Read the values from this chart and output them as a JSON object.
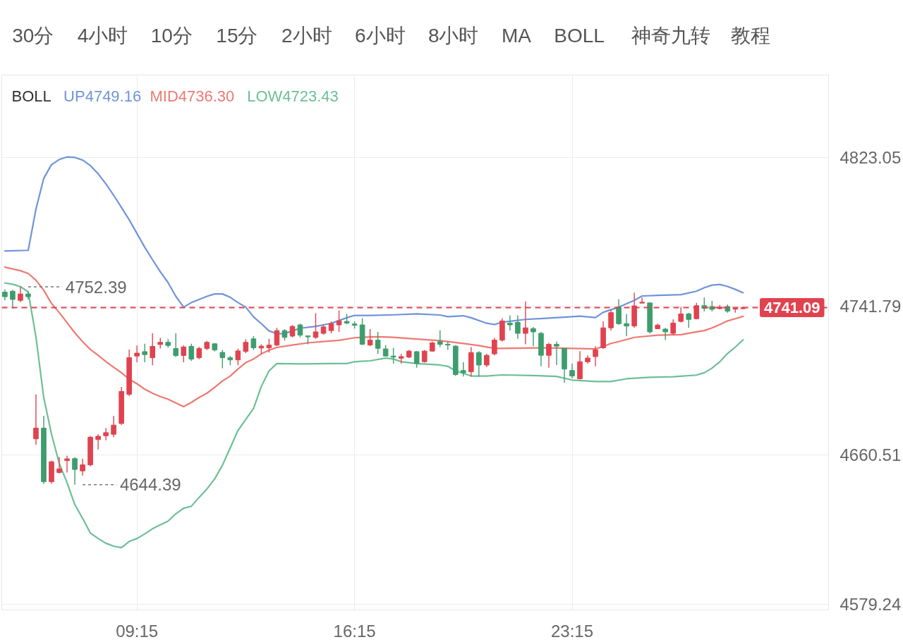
{
  "chart_data": {
    "type": "candlestick",
    "x": [
      5.0,
      5.25,
      5.5,
      5.75,
      6.0,
      6.25,
      6.5,
      6.75,
      7.0,
      7.25,
      7.5,
      7.75,
      8.0,
      8.25,
      8.5,
      8.75,
      9.0,
      9.25,
      9.5,
      9.75,
      10.0,
      10.25,
      10.5,
      10.75,
      11.0,
      11.25,
      11.5,
      11.75,
      12.0,
      12.25,
      12.5,
      12.75,
      13.0,
      13.25,
      13.5,
      13.75,
      14.0,
      14.25,
      14.5,
      14.75,
      15.0,
      15.25,
      15.5,
      15.75,
      16.0,
      16.25,
      16.5,
      16.75,
      17.0,
      17.25,
      17.5,
      17.75,
      18.0,
      18.25,
      18.5,
      18.75,
      19.0,
      19.25,
      19.5,
      19.75,
      20.0,
      20.25,
      20.5,
      20.75,
      21.0,
      21.25,
      21.5,
      21.75,
      22.0,
      22.25,
      22.5,
      22.75,
      23.0,
      23.25,
      23.5,
      23.75,
      24.0,
      24.25,
      24.5,
      24.75,
      25.0,
      25.25,
      25.5,
      25.75,
      26.0,
      26.25,
      26.5,
      26.75,
      27.0,
      27.25,
      27.5,
      27.75,
      28.0,
      28.25,
      28.5,
      28.75
    ],
    "ohlc": [
      [
        4749.5,
        4751.0,
        4745.0,
        4747.0
      ],
      [
        4750.0,
        4750.8,
        4740.6,
        4745.5
      ],
      [
        4745.0,
        4752.39,
        4744.0,
        4748.5
      ],
      [
        4748.5,
        4749.8,
        4745.5,
        4747.0
      ],
      [
        4669.4,
        4693.7,
        4666.1,
        4675.3
      ],
      [
        4675.3,
        4682.0,
        4644.8,
        4646.0
      ],
      [
        4646.0,
        4657.5,
        4645.0,
        4656.9
      ],
      [
        4651.0,
        4659.5,
        4650.5,
        4653.0
      ],
      [
        4657.5,
        4660.2,
        4651.0,
        4658.5
      ],
      [
        4658.6,
        4659.4,
        4644.39,
        4652.7
      ],
      [
        4651.9,
        4658.6,
        4649.4,
        4655.2
      ],
      [
        4655.2,
        4671.0,
        4654.4,
        4670.3
      ],
      [
        4669.0,
        4671.9,
        4663.6,
        4670.8
      ],
      [
        4671.1,
        4675.3,
        4668.6,
        4672.8
      ],
      [
        4671.9,
        4681.9,
        4670.3,
        4676.9
      ],
      [
        4677.8,
        4697.8,
        4677.0,
        4695.3
      ],
      [
        4693.7,
        4718.2,
        4692.8,
        4713.7
      ],
      [
        4714.6,
        4720.4,
        4711.2,
        4716.2
      ],
      [
        4717.0,
        4721.3,
        4711.2,
        4715.4
      ],
      [
        4713.7,
        4727.1,
        4709.6,
        4719.9
      ],
      [
        4720.9,
        4724.6,
        4718.7,
        4722.1
      ],
      [
        4722.1,
        4723.8,
        4719.2,
        4720.4
      ],
      [
        4718.7,
        4727.1,
        4714.0,
        4714.9
      ],
      [
        4714.9,
        4720.4,
        4711.2,
        4719.6
      ],
      [
        4719.9,
        4721.3,
        4712.0,
        4712.9
      ],
      [
        4713.7,
        4719.6,
        4712.9,
        4718.7
      ],
      [
        4718.7,
        4722.9,
        4717.9,
        4722.1
      ],
      [
        4721.3,
        4721.6,
        4717.1,
        4717.9
      ],
      [
        4716.6,
        4717.9,
        4707.9,
        4713.7
      ],
      [
        4713.7,
        4714.6,
        4709.6,
        4712.5
      ],
      [
        4712.5,
        4718.7,
        4709.6,
        4717.4
      ],
      [
        4717.1,
        4723.8,
        4716.2,
        4722.1
      ],
      [
        4724.0,
        4725.5,
        4718.0,
        4719.1
      ],
      [
        4719.0,
        4721.0,
        4715.8,
        4720.0
      ],
      [
        4719.1,
        4724.0,
        4716.5,
        4720.6
      ],
      [
        4720.6,
        4730.0,
        4720.0,
        4728.5
      ],
      [
        4728.5,
        4729.3,
        4723.0,
        4724.8
      ],
      [
        4725.5,
        4731.5,
        4724.8,
        4730.8
      ],
      [
        4731.6,
        4732.3,
        4724.8,
        4726.0
      ],
      [
        4725.6,
        4725.6,
        4721.0,
        4725.1
      ],
      [
        4724.8,
        4738.0,
        4724.0,
        4727.8
      ],
      [
        4727.0,
        4731.6,
        4726.3,
        4730.5
      ],
      [
        4728.5,
        4733.5,
        4727.0,
        4732.3
      ],
      [
        4731.6,
        4739.5,
        4727.8,
        4733.8
      ],
      [
        4733.5,
        4737.6,
        4732.0,
        4732.6
      ],
      [
        4732.1,
        4733.5,
        4729.6,
        4731.4
      ],
      [
        4731.6,
        4735.3,
        4720.6,
        4721.0
      ],
      [
        4720.6,
        4729.3,
        4720.0,
        4723.3
      ],
      [
        4723.3,
        4727.8,
        4715.8,
        4718.8
      ],
      [
        4718.5,
        4720.6,
        4714.3,
        4714.6
      ],
      [
        4714.6,
        4719.1,
        4710.5,
        4714.0
      ],
      [
        4713.4,
        4715.8,
        4710.5,
        4714.3
      ],
      [
        4714.0,
        4718.0,
        4713.5,
        4717.3
      ],
      [
        4717.0,
        4717.3,
        4708.2,
        4710.5
      ],
      [
        4711.5,
        4718.0,
        4711.0,
        4717.3
      ],
      [
        4717.3,
        4722.5,
        4717.0,
        4721.8
      ],
      [
        4722.5,
        4728.6,
        4719.5,
        4721.0
      ],
      [
        4721.0,
        4722.5,
        4718.0,
        4720.6
      ],
      [
        4720.0,
        4720.6,
        4703.7,
        4704.5
      ],
      [
        4706.7,
        4711.2,
        4703.4,
        4705.5
      ],
      [
        4706.0,
        4719.5,
        4703.4,
        4716.5
      ],
      [
        4716.5,
        4717.3,
        4703.4,
        4709.7
      ],
      [
        4709.7,
        4715.8,
        4708.5,
        4715.0
      ],
      [
        4715.8,
        4724.5,
        4715.0,
        4723.3
      ],
      [
        4723.3,
        4735.3,
        4722.5,
        4733.8
      ],
      [
        4732.6,
        4736.8,
        4728.5,
        4731.6
      ],
      [
        4733.0,
        4736.8,
        4724.0,
        4727.0
      ],
      [
        4727.0,
        4744.4,
        4721.0,
        4730.0
      ],
      [
        4729.6,
        4730.5,
        4720.0,
        4727.8
      ],
      [
        4727.0,
        4727.8,
        4709.0,
        4715.0
      ],
      [
        4715.0,
        4721.8,
        4708.2,
        4721.0
      ],
      [
        4721.0,
        4722.5,
        4709.7,
        4720.0
      ],
      [
        4718.8,
        4718.8,
        4700.0,
        4707.5
      ],
      [
        4706.7,
        4710.5,
        4702.5,
        4703.7
      ],
      [
        4702.2,
        4717.3,
        4701.8,
        4711.5
      ],
      [
        4711.5,
        4715.0,
        4710.5,
        4713.5
      ],
      [
        4714.3,
        4720.0,
        4709.0,
        4718.0
      ],
      [
        4719.1,
        4733.5,
        4718.5,
        4730.0
      ],
      [
        4730.0,
        4739.8,
        4728.5,
        4738.3
      ],
      [
        4741.3,
        4745.6,
        4731.6,
        4732.3
      ],
      [
        4732.3,
        4737.6,
        4725.5,
        4731.0
      ],
      [
        4731.0,
        4749.2,
        4730.0,
        4742.0
      ],
      [
        4743.5,
        4746.5,
        4743.5,
        4744.0
      ],
      [
        4743.6,
        4743.9,
        4727.0,
        4727.8
      ],
      [
        4729.5,
        4732.3,
        4729.3,
        4731.5
      ],
      [
        4729.3,
        4730.0,
        4723.3,
        4727.8
      ],
      [
        4727.0,
        4734.6,
        4726.3,
        4732.6
      ],
      [
        4733.5,
        4741.3,
        4733.0,
        4737.6
      ],
      [
        4737.6,
        4738.3,
        4730.0,
        4734.6
      ],
      [
        4735.0,
        4743.6,
        4734.6,
        4742.1
      ],
      [
        4742.1,
        4746.6,
        4739.0,
        4740.6
      ],
      [
        4741.6,
        4744.7,
        4739.0,
        4740.1
      ],
      [
        4740.5,
        4742.5,
        4740.1,
        4741.3
      ],
      [
        4741.6,
        4742.8,
        4738.3,
        4739.1
      ],
      [
        4740.2,
        4740.6,
        4738.3,
        4740.6
      ],
      [
        4740.5,
        4741.5,
        4740.2,
        4741.09
      ]
    ],
    "colors": [
      "#3e9d6d",
      "#3e9d6d",
      "#e0434f",
      "#3e9d6d",
      "#e0434f",
      "#3e9d6d",
      "#e0434f",
      "#e0434f",
      "#e0434f",
      "#3e9d6d",
      "#e0434f",
      "#e0434f",
      "#e0434f",
      "#e0434f",
      "#e0434f",
      "#e0434f",
      "#e0434f",
      "#e0434f",
      "#3e9d6d",
      "#e0434f",
      "#e0434f",
      "#3e9d6d",
      "#3e9d6d",
      "#e0434f",
      "#3e9d6d",
      "#e0434f",
      "#e0434f",
      "#3e9d6d",
      "#3e9d6d",
      "#3e9d6d",
      "#e0434f",
      "#e0434f",
      "#3e9d6d",
      "#e0434f",
      "#e0434f",
      "#e0434f",
      "#3e9d6d",
      "#e0434f",
      "#3e9d6d",
      "#3e9d6d",
      "#e0434f",
      "#e0434f",
      "#e0434f",
      "#e0434f",
      "#3e9d6d",
      "#3e9d6d",
      "#3e9d6d",
      "#e0434f",
      "#3e9d6d",
      "#3e9d6d",
      "#3e9d6d",
      "#e0434f",
      "#e0434f",
      "#3e9d6d",
      "#e0434f",
      "#e0434f",
      "#3e9d6d",
      "#3e9d6d",
      "#3e9d6d",
      "#3e9d6d",
      "#e0434f",
      "#3e9d6d",
      "#e0434f",
      "#e0434f",
      "#e0434f",
      "#3e9d6d",
      "#3e9d6d",
      "#e0434f",
      "#3e9d6d",
      "#3e9d6d",
      "#e0434f",
      "#3e9d6d",
      "#3e9d6d",
      "#3e9d6d",
      "#e0434f",
      "#e0434f",
      "#e0434f",
      "#e0434f",
      "#e0434f",
      "#3e9d6d",
      "#3e9d6d",
      "#e0434f",
      "#e0434f",
      "#3e9d6d",
      "#e0434f",
      "#3e9d6d",
      "#e0434f",
      "#e0434f",
      "#3e9d6d",
      "#e0434f",
      "#3e9d6d",
      "#3e9d6d",
      "#e0434f",
      "#3e9d6d",
      "#e0434f",
      "#e0434f"
    ],
    "series": [
      {
        "type": "line",
        "name": "UP4749.16",
        "color": "#6f94d9",
        "x": [
          5.0,
          5.75,
          6.0,
          6.25,
          6.5,
          6.75,
          7.0,
          7.25,
          7.5,
          7.75,
          8.0,
          8.25,
          8.5,
          8.75,
          9.0,
          9.25,
          9.5,
          9.75,
          10.0,
          10.25,
          10.5,
          10.75,
          11.0,
          11.25,
          11.5,
          11.75,
          12.0,
          12.25,
          12.5,
          12.75,
          13.0,
          13.25,
          13.5,
          13.75,
          14.0,
          14.25,
          14.5,
          15.0,
          15.5,
          16.0,
          16.25,
          16.75,
          17.5,
          18.25,
          19.0,
          19.25,
          19.75,
          20.0,
          20.5,
          20.75,
          21.0,
          21.75,
          22.5,
          23.25,
          23.5,
          24.0,
          24.25,
          24.75,
          25.25,
          25.5,
          26.0,
          26.75,
          27.25,
          27.5,
          27.75,
          28.0,
          28.25,
          28.5,
          28.75
        ],
        "values": [
          4772.0,
          4772.3,
          4794.8,
          4811.6,
          4819.1,
          4821.9,
          4823.3,
          4823.0,
          4821.6,
          4818.6,
          4814.1,
          4808.6,
          4802.4,
          4795.7,
          4789.0,
          4781.5,
          4774.0,
          4767.2,
          4760.6,
          4754.7,
          4747.2,
          4741.3,
          4743.8,
          4745.5,
          4747.2,
          4748.5,
          4748.5,
          4746.7,
          4743.8,
          4741.3,
          4736.0,
          4732.3,
          4728.3,
          4726.8,
          4726.8,
          4728.3,
          4729.8,
          4730.8,
          4732.5,
          4735.5,
          4736.8,
          4736.8,
          4737.1,
          4737.6,
          4737.0,
          4736.1,
          4736.6,
          4735.5,
          4732.5,
          4731.8,
          4733.1,
          4734.6,
          4735.3,
          4736.1,
          4736.4,
          4735.6,
          4738.5,
          4741.3,
          4745.0,
          4747.4,
          4747.7,
          4748.1,
          4750.0,
          4751.9,
          4753.3,
          4753.7,
          4752.6,
          4751.0,
          4749.16
        ]
      },
      {
        "type": "line",
        "name": "MID4736.30",
        "color": "#ec7a72",
        "x": [
          5.0,
          5.5,
          5.75,
          6.0,
          6.25,
          6.5,
          6.75,
          7.0,
          7.25,
          7.5,
          7.75,
          8.0,
          8.25,
          8.5,
          8.75,
          9.0,
          9.25,
          9.5,
          9.75,
          10.0,
          10.25,
          10.5,
          10.75,
          11.0,
          11.25,
          11.5,
          11.75,
          12.0,
          12.25,
          12.5,
          12.75,
          13.0,
          13.25,
          13.5,
          13.75,
          14.25,
          14.75,
          15.25,
          15.75,
          16.25,
          16.5,
          17.0,
          17.5,
          18.25,
          19.0,
          19.75,
          20.25,
          20.75,
          21.0,
          21.75,
          22.5,
          23.25,
          24.0,
          24.25,
          24.5,
          24.75,
          25.25,
          26.0,
          26.75,
          27.25,
          27.5,
          27.75,
          28.0,
          28.25,
          28.5,
          28.75
        ],
        "values": [
          4763.1,
          4761.2,
          4759.7,
          4756.0,
          4750.5,
          4743.3,
          4738.3,
          4732.8,
          4727.3,
          4722.5,
          4718.2,
          4715.0,
          4711.6,
          4708.5,
          4705.5,
          4702.0,
          4699.5,
          4696.5,
          4694.3,
          4692.5,
          4691.0,
          4689.0,
          4687.0,
          4689.3,
          4692.0,
          4694.3,
          4697.5,
          4701.0,
          4703.7,
          4707.5,
          4711.0,
          4713.0,
          4715.8,
          4717.8,
          4719.3,
          4720.6,
          4721.8,
          4722.5,
          4723.2,
          4724.6,
          4724.8,
          4725.1,
          4724.8,
          4723.9,
          4723.0,
          4721.5,
          4720.3,
          4718.8,
          4718.8,
          4719.0,
          4719.1,
          4718.8,
          4718.5,
          4719.8,
          4721.5,
          4722.5,
          4724.8,
          4726.0,
          4726.3,
          4727.8,
          4728.5,
          4730.0,
          4731.8,
          4733.8,
          4735.0,
          4736.3
        ]
      },
      {
        "type": "line",
        "name": "LOW4723.43",
        "color": "#6dbf96",
        "x": [
          5.0,
          5.25,
          5.5,
          5.75,
          6.0,
          6.25,
          6.5,
          6.75,
          7.0,
          7.25,
          7.5,
          7.75,
          8.0,
          8.25,
          8.5,
          8.75,
          9.0,
          9.25,
          9.5,
          9.75,
          10.0,
          10.25,
          10.5,
          10.75,
          11.0,
          11.25,
          11.5,
          11.75,
          12.0,
          12.25,
          12.5,
          12.75,
          13.0,
          13.25,
          13.5,
          13.75,
          14.5,
          15.5,
          16.0,
          16.25,
          16.75,
          17.25,
          17.5,
          17.75,
          18.25,
          19.0,
          19.25,
          19.5,
          19.75,
          20.0,
          20.5,
          21.0,
          22.0,
          22.75,
          23.25,
          24.0,
          24.5,
          25.0,
          25.75,
          26.5,
          27.25,
          27.5,
          27.75,
          28.0,
          28.25,
          28.5,
          28.75
        ],
        "values": [
          4754.5,
          4753.8,
          4752.5,
          4749.7,
          4725.0,
          4692.0,
          4672.0,
          4656.0,
          4645.5,
          4633.5,
          4626.0,
          4618.0,
          4615.0,
          4612.4,
          4610.8,
          4610.0,
          4613.4,
          4615.0,
          4617.5,
          4620.3,
          4622.5,
          4624.5,
          4628.5,
          4631.5,
          4632.6,
          4637.5,
          4642.0,
          4647.5,
          4655.0,
          4664.5,
          4674.0,
          4680.0,
          4686.0,
          4698.0,
          4706.5,
          4710.5,
          4710.3,
          4710.5,
          4710.5,
          4711.5,
          4712.0,
          4713.5,
          4713.0,
          4711.5,
          4710.5,
          4709.7,
          4709.0,
          4706.5,
          4705.2,
          4703.7,
          4703.7,
          4704.3,
          4704.0,
          4703.5,
          4701.5,
          4700.7,
          4700.7,
          4702.2,
          4703.0,
          4703.3,
          4704.2,
          4705.5,
          4708.0,
          4711.5,
          4716.0,
          4719.5,
          4723.43
        ]
      }
    ],
    "legend": "top left",
    "legend_title": "BOLL",
    "xlim": [
      4.9,
      31.5
    ],
    "ylim": [
      4576,
      4868
    ],
    "xticks": [
      {
        "value": 9.25,
        "label": "09:15"
      },
      {
        "value": 16.25,
        "label": "16:15"
      },
      {
        "value": 23.25,
        "label": "23:15"
      }
    ],
    "yticks": [
      4579.24,
      4660.51,
      4741.79,
      4823.05
    ],
    "grid": true,
    "ref_lines": [
      {
        "axis": "y",
        "value": 4741.09,
        "label": "4741.09",
        "color": "#e0434f",
        "line_style": "dashed"
      }
    ],
    "annotations": [
      "30分",
      "4小时",
      "10分",
      "15分",
      "2小时",
      "6小时",
      "8小时",
      "MA",
      "BOLL",
      "神奇九转",
      "教程",
      {
        "text": "4752.39",
        "x": 5.5,
        "y": 4752.39
      },
      {
        "text": "4644.39",
        "x": 7.25,
        "y": 4644.39
      }
    ]
  }
}
